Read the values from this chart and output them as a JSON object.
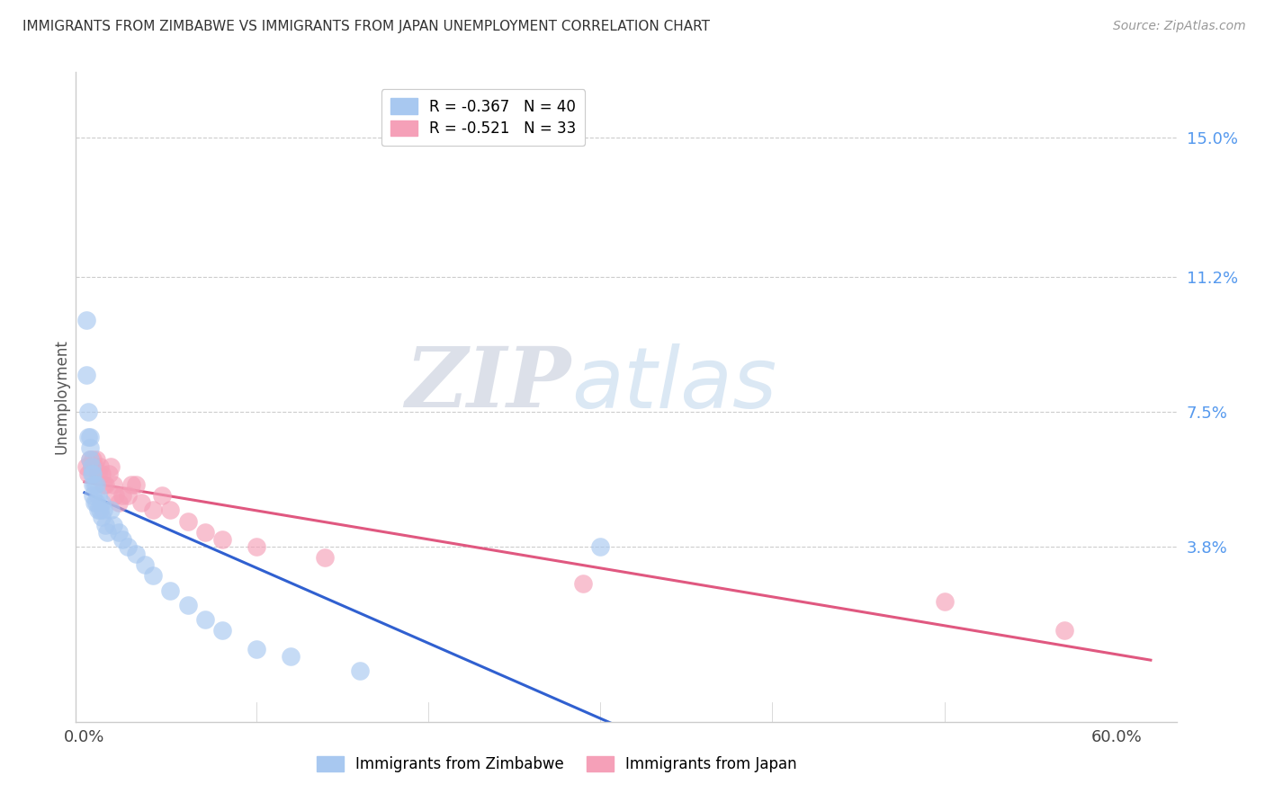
{
  "title": "IMMIGRANTS FROM ZIMBABWE VS IMMIGRANTS FROM JAPAN UNEMPLOYMENT CORRELATION CHART",
  "source": "Source: ZipAtlas.com",
  "ylabel": "Unemployment",
  "y_tick_labels": [
    "15.0%",
    "11.2%",
    "7.5%",
    "3.8%"
  ],
  "y_tick_values": [
    0.15,
    0.112,
    0.075,
    0.038
  ],
  "xlim": [
    -0.005,
    0.635
  ],
  "ylim": [
    -0.01,
    0.168
  ],
  "legend1_label": "R = -0.367   N = 40",
  "legend2_label": "R = -0.521   N = 33",
  "legend_bottom1": "Immigrants from Zimbabwe",
  "legend_bottom2": "Immigrants from Japan",
  "blue_color": "#a8c8f0",
  "pink_color": "#f5a0b8",
  "line_blue": "#3060d0",
  "line_pink": "#e05880",
  "zimbabwe_x": [
    0.001,
    0.001,
    0.002,
    0.002,
    0.003,
    0.003,
    0.003,
    0.004,
    0.004,
    0.005,
    0.005,
    0.005,
    0.006,
    0.006,
    0.007,
    0.007,
    0.008,
    0.008,
    0.009,
    0.01,
    0.01,
    0.011,
    0.012,
    0.013,
    0.015,
    0.017,
    0.02,
    0.022,
    0.025,
    0.03,
    0.035,
    0.04,
    0.05,
    0.06,
    0.07,
    0.08,
    0.1,
    0.12,
    0.16,
    0.3
  ],
  "zimbabwe_y": [
    0.1,
    0.085,
    0.075,
    0.068,
    0.068,
    0.065,
    0.062,
    0.06,
    0.058,
    0.058,
    0.055,
    0.052,
    0.055,
    0.05,
    0.055,
    0.05,
    0.052,
    0.048,
    0.048,
    0.05,
    0.046,
    0.048,
    0.044,
    0.042,
    0.048,
    0.044,
    0.042,
    0.04,
    0.038,
    0.036,
    0.033,
    0.03,
    0.026,
    0.022,
    0.018,
    0.015,
    0.01,
    0.008,
    0.004,
    0.038
  ],
  "japan_x": [
    0.001,
    0.002,
    0.003,
    0.004,
    0.005,
    0.006,
    0.007,
    0.008,
    0.009,
    0.01,
    0.011,
    0.012,
    0.014,
    0.015,
    0.017,
    0.018,
    0.02,
    0.022,
    0.025,
    0.027,
    0.03,
    0.033,
    0.04,
    0.045,
    0.05,
    0.06,
    0.07,
    0.08,
    0.1,
    0.14,
    0.29,
    0.5,
    0.57
  ],
  "japan_y": [
    0.06,
    0.058,
    0.062,
    0.06,
    0.062,
    0.06,
    0.062,
    0.058,
    0.06,
    0.058,
    0.055,
    0.055,
    0.058,
    0.06,
    0.055,
    0.052,
    0.05,
    0.052,
    0.052,
    0.055,
    0.055,
    0.05,
    0.048,
    0.052,
    0.048,
    0.045,
    0.042,
    0.04,
    0.038,
    0.035,
    0.028,
    0.023,
    0.015
  ]
}
